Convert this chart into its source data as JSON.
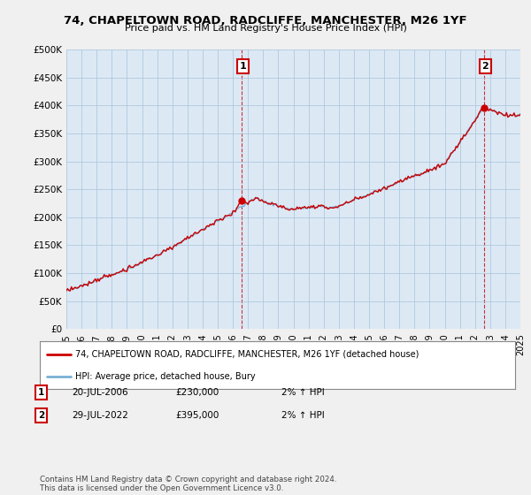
{
  "title": "74, CHAPELTOWN ROAD, RADCLIFFE, MANCHESTER, M26 1YF",
  "subtitle": "Price paid vs. HM Land Registry's House Price Index (HPI)",
  "ylim": [
    0,
    500000
  ],
  "yticks": [
    0,
    50000,
    100000,
    150000,
    200000,
    250000,
    300000,
    350000,
    400000,
    450000,
    500000
  ],
  "ytick_labels": [
    "£0",
    "£50K",
    "£100K",
    "£150K",
    "£200K",
    "£250K",
    "£300K",
    "£350K",
    "£400K",
    "£450K",
    "£500K"
  ],
  "sale1_year": 2006.55,
  "sale1_price": 230000,
  "sale2_year": 2022.57,
  "sale2_price": 395000,
  "hpi_color": "#7ab0d4",
  "price_color": "#cc0000",
  "background_color": "#f0f0f0",
  "plot_bg_color": "#dce9f5",
  "grid_color": "#b0c8dc",
  "annotation1_label": "1",
  "annotation2_label": "2",
  "legend_line1": "74, CHAPELTOWN ROAD, RADCLIFFE, MANCHESTER, M26 1YF (detached house)",
  "legend_line2": "HPI: Average price, detached house, Bury",
  "note1_label": "1",
  "note1_date": "20-JUL-2006",
  "note1_price": "£230,000",
  "note1_hpi": "2% ↑ HPI",
  "note2_label": "2",
  "note2_date": "29-JUL-2022",
  "note2_price": "£395,000",
  "note2_hpi": "2% ↑ HPI",
  "footer": "Contains HM Land Registry data © Crown copyright and database right 2024.\nThis data is licensed under the Open Government Licence v3.0.",
  "xmin": 1995,
  "xmax": 2025,
  "xticks": [
    1995,
    1996,
    1997,
    1998,
    1999,
    2000,
    2001,
    2002,
    2003,
    2004,
    2005,
    2006,
    2007,
    2008,
    2009,
    2010,
    2011,
    2012,
    2013,
    2014,
    2015,
    2016,
    2017,
    2018,
    2019,
    2020,
    2021,
    2022,
    2023,
    2024,
    2025
  ]
}
